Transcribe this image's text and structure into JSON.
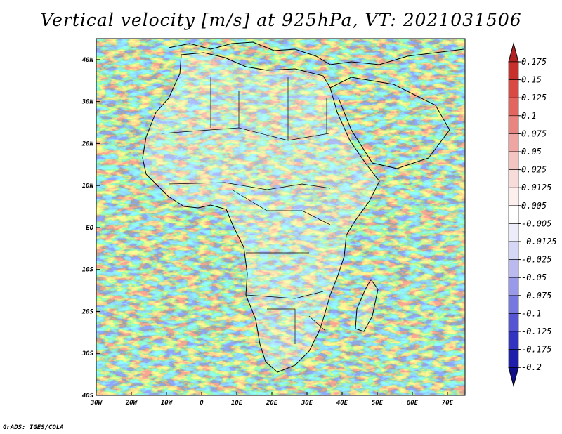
{
  "title": "Vertical velocity [m/s] at 925hPa, VT: 2021031506",
  "footer": "GrADS: IGES/COLA",
  "map": {
    "lon_range": [
      -30,
      75
    ],
    "lat_range": [
      -40,
      45
    ],
    "lat_labels": [
      "40N",
      "30N",
      "20N",
      "10N",
      "EQ",
      "10S",
      "20S",
      "30S",
      "40S"
    ],
    "lat_values": [
      40,
      30,
      20,
      10,
      0,
      -10,
      -20,
      -30,
      -40
    ],
    "lon_labels": [
      "30W",
      "20W",
      "10W",
      "0",
      "10E",
      "20E",
      "30E",
      "40E",
      "50E",
      "60E",
      "70E"
    ],
    "lon_values": [
      -30,
      -20,
      -10,
      0,
      10,
      20,
      30,
      40,
      50,
      60,
      70
    ]
  },
  "colorbar": {
    "labels": [
      "0.175",
      "0.15",
      "0.125",
      "0.1",
      "0.075",
      "0.05",
      "0.025",
      "0.0125",
      "0.005",
      "-0.005",
      "-0.0125",
      "-0.025",
      "-0.05",
      "-0.075",
      "-0.1",
      "-0.125",
      "-0.175",
      "-0.2"
    ],
    "colors": [
      "#b22222",
      "#c8302c",
      "#d94a45",
      "#e26560",
      "#e98580",
      "#efa6a2",
      "#f4c4c1",
      "#f8dcda",
      "#fcefee",
      "#ffffff",
      "#ececfb",
      "#d6d6f7",
      "#babaf1",
      "#9999ea",
      "#7777e0",
      "#5555d3",
      "#3333c2",
      "#1e1eaa",
      "#0f0f8c"
    ]
  }
}
